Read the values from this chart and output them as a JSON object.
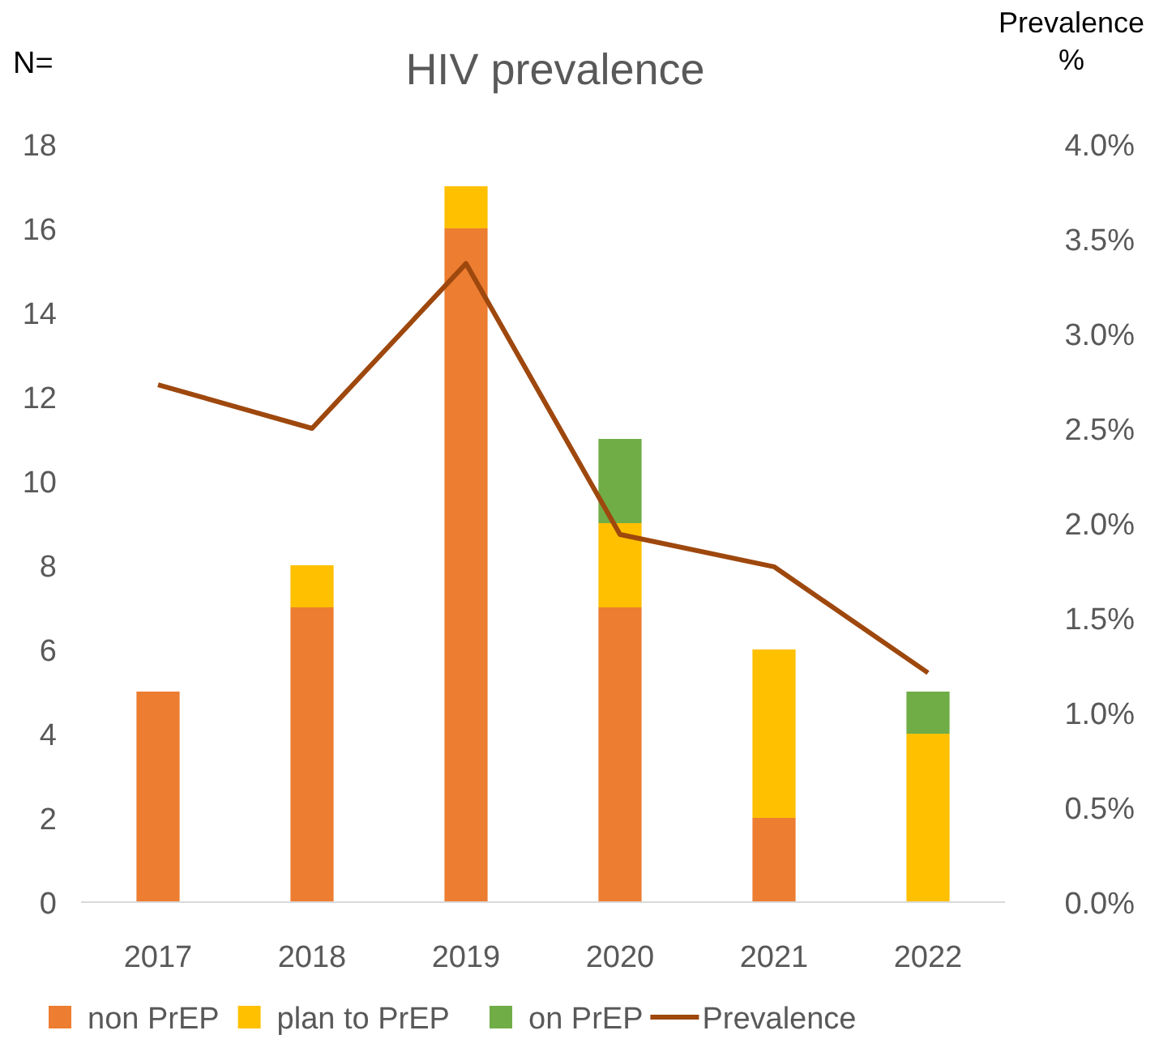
{
  "chart_data": {
    "type": "bar",
    "title": "HIV prevalence",
    "ylabel": "N=",
    "y2label": "Prevalence %",
    "categories": [
      "2017",
      "2018",
      "2019",
      "2020",
      "2021",
      "2022"
    ],
    "stacked": true,
    "series": [
      {
        "name": "non PrEP",
        "color": "#ed7d31",
        "values": [
          5,
          7,
          16,
          7,
          2,
          0
        ]
      },
      {
        "name": "plan to PrEP",
        "color": "#ffc000",
        "values": [
          0,
          1,
          1,
          2,
          4,
          4
        ]
      },
      {
        "name": "on PrEP",
        "color": "#70ad47",
        "values": [
          0,
          0,
          0,
          2,
          0,
          1
        ]
      },
      {
        "name": "Prevalence",
        "type": "line",
        "axis": "y2",
        "color": "#9e480e",
        "values": [
          2.73,
          2.5,
          3.37,
          1.94,
          1.77,
          1.21
        ]
      }
    ],
    "ylim": [
      0,
      18
    ],
    "yticks": [
      0,
      2,
      4,
      6,
      8,
      10,
      12,
      14,
      16,
      18
    ],
    "y2lim": [
      0,
      4
    ],
    "y2ticks": [
      {
        "value": 0,
        "label": "0.0%"
      },
      {
        "value": 0.5,
        "label": "0.5%"
      },
      {
        "value": 1,
        "label": "1.0%"
      },
      {
        "value": 1.5,
        "label": "1.5%"
      },
      {
        "value": 2,
        "label": "2.0%"
      },
      {
        "value": 2.5,
        "label": "2.5%"
      },
      {
        "value": 3,
        "label": "3.0%"
      },
      {
        "value": 3.5,
        "label": "3.5%"
      },
      {
        "value": 4,
        "label": "4.0%"
      }
    ],
    "grid": false,
    "legend": "bottom",
    "marker": "none",
    "line_style": "solid"
  }
}
